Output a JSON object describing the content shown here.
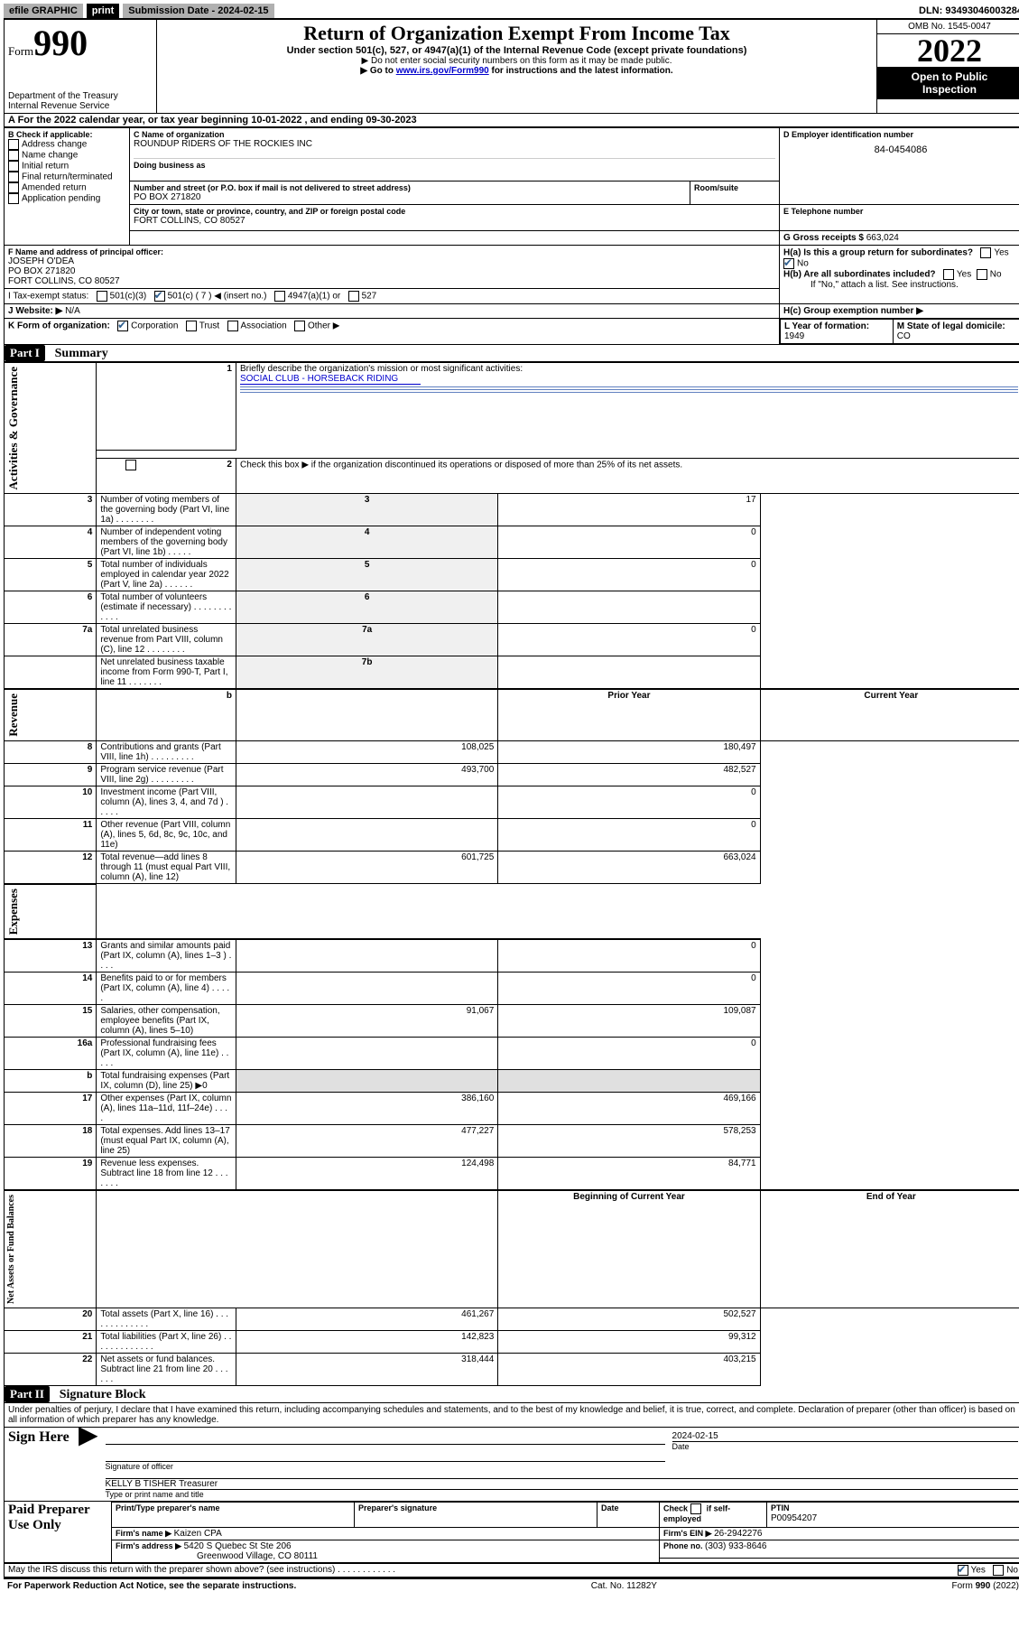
{
  "colors": {
    "link": "#0000cc",
    "check": "#2f5f8f",
    "grey": "#e0e0e0"
  },
  "top": {
    "efile": "efile GRAPHIC",
    "print": "print",
    "sub_label": "Submission Date - ",
    "sub_date": "2024-02-15",
    "dln_label": "DLN: ",
    "dln": "93493046003284"
  },
  "hdr": {
    "form_word": "Form",
    "form_num": "990",
    "dept1": "Department of the Treasury",
    "dept2": "Internal Revenue Service",
    "title": "Return of Organization Exempt From Income Tax",
    "sub1": "Under section 501(c), 527, or 4947(a)(1) of the Internal Revenue Code (except private foundations)",
    "sub2": "▶ Do not enter social security numbers on this form as it may be made public.",
    "sub3a": "▶ Go to ",
    "sub3_link": "www.irs.gov/Form990",
    "sub3b": " for instructions and the latest information.",
    "omb": "OMB No. 1545-0047",
    "year": "2022",
    "open1": "Open to Public",
    "open2": "Inspection"
  },
  "line_a": {
    "prefix": "A For the 2022 calendar year, or tax year beginning ",
    "begin": "10-01-2022",
    "mid": " , and ending ",
    "end": "09-30-2023"
  },
  "box_b": {
    "title": "B Check if applicable:",
    "opts": [
      "Address change",
      "Name change",
      "Initial return",
      "Final return/terminated",
      "Amended return",
      "Application pending"
    ]
  },
  "box_c": {
    "name_lbl": "C Name of organization",
    "name": "ROUNDUP RIDERS OF THE ROCKIES INC",
    "dba_lbl": "Doing business as",
    "addr_lbl": "Number and street (or P.O. box if mail is not delivered to street address)",
    "room_lbl": "Room/suite",
    "addr": "PO BOX 271820",
    "city_lbl": "City or town, state or province, country, and ZIP or foreign postal code",
    "city": "FORT COLLINS, CO  80527"
  },
  "box_d": {
    "lbl": "D Employer identification number",
    "val": "84-0454086"
  },
  "box_e": {
    "lbl": "E Telephone number",
    "val": ""
  },
  "box_g": {
    "lbl": "G Gross receipts $ ",
    "val": "663,024"
  },
  "box_f": {
    "lbl": "F Name and address of principal officer:",
    "name": "JOSEPH O'DEA",
    "addr1": "PO BOX 271820",
    "addr2": "FORT COLLINS, CO  80527"
  },
  "box_h": {
    "a_lbl": "H(a)  Is this a group return for subordinates?",
    "b_lbl": "H(b)  Are all subordinates included?",
    "note": "If \"No,\" attach a list. See instructions.",
    "c_lbl": "H(c)  Group exemption number ▶",
    "yes": "Yes",
    "no": "No"
  },
  "box_i": {
    "lbl": "I   Tax-exempt status:",
    "o1": "501(c)(3)",
    "o2": "501(c) ( 7 ) ◀ (insert no.)",
    "o3": "4947(a)(1) or",
    "o4": "527"
  },
  "box_j": {
    "lbl": "J   Website: ▶ ",
    "val": "N/A"
  },
  "box_k": {
    "lbl": "K Form of organization:",
    "o1": "Corporation",
    "o2": "Trust",
    "o3": "Association",
    "o4": "Other ▶"
  },
  "box_l": {
    "lbl": "L Year of formation: ",
    "val": "1949"
  },
  "box_m": {
    "lbl": "M State of legal domicile: ",
    "val": "CO"
  },
  "part1": {
    "tag": "Part I",
    "title": "Summary"
  },
  "sidebars": {
    "ag": "Activities & Governance",
    "rev": "Revenue",
    "exp": "Expenses",
    "na": "Net Assets or Fund Balances"
  },
  "summary": {
    "l1": "Briefly describe the organization's mission or most significant activities:",
    "l1v": "SOCIAL CLUB - HORSEBACK RIDING",
    "l2": "Check this box ▶         if the organization discontinued its operations or disposed of more than 25% of its net assets.",
    "rows_ag": [
      {
        "n": "3",
        "t": "Number of voting members of the governing body (Part VI, line 1a)   .    .    .    .    .    .    .    .",
        "b": "3",
        "v": "17"
      },
      {
        "n": "4",
        "t": "Number of independent voting members of the governing body (Part VI, line 1b)   .    .    .    .    .",
        "b": "4",
        "v": "0"
      },
      {
        "n": "5",
        "t": "Total number of individuals employed in calendar year 2022 (Part V, line 2a)   .    .    .    .    .    .",
        "b": "5",
        "v": "0"
      },
      {
        "n": "6",
        "t": "Total number of volunteers (estimate if necessary)   .    .    .    .    .    .    .    .    .    .    .    .",
        "b": "6",
        "v": ""
      },
      {
        "n": "7a",
        "t": "Total unrelated business revenue from Part VIII, column (C), line 12   .    .    .    .    .    .    .    .",
        "b": "7a",
        "v": "0"
      },
      {
        "n": "",
        "t": "Net unrelated business taxable income from Form 990-T, Part I, line 11   .    .    .    .    .    .    .",
        "b": "7b",
        "v": ""
      }
    ],
    "hdr_b": "b",
    "hdr_prior": "Prior Year",
    "hdr_curr": "Current Year",
    "rows_rev": [
      {
        "n": "8",
        "t": "Contributions and grants (Part VIII, line 1h)   .    .    .    .    .    .    .    .    .",
        "p": "108,025",
        "c": "180,497"
      },
      {
        "n": "9",
        "t": "Program service revenue (Part VIII, line 2g)   .    .    .    .    .    .    .    .    .",
        "p": "493,700",
        "c": "482,527"
      },
      {
        "n": "10",
        "t": "Investment income (Part VIII, column (A), lines 3, 4, and 7d )   .    .    .    .    .",
        "p": "",
        "c": "0"
      },
      {
        "n": "11",
        "t": "Other revenue (Part VIII, column (A), lines 5, 6d, 8c, 9c, 10c, and 11e)",
        "p": "",
        "c": "0"
      },
      {
        "n": "12",
        "t": "Total revenue—add lines 8 through 11 (must equal Part VIII, column (A), line 12)",
        "p": "601,725",
        "c": "663,024"
      }
    ],
    "rows_exp": [
      {
        "n": "13",
        "t": "Grants and similar amounts paid (Part IX, column (A), lines 1–3 )   .    .    .    .",
        "p": "",
        "c": "0"
      },
      {
        "n": "14",
        "t": "Benefits paid to or for members (Part IX, column (A), line 4)   .    .    .    .    .",
        "p": "",
        "c": "0"
      },
      {
        "n": "15",
        "t": "Salaries, other compensation, employee benefits (Part IX, column (A), lines 5–10)",
        "p": "91,067",
        "c": "109,087"
      },
      {
        "n": "16a",
        "t": "Professional fundraising fees (Part IX, column (A), line 11e)   .    .    .    .    .",
        "p": "",
        "c": "0"
      },
      {
        "n": "b",
        "t": "Total fundraising expenses (Part IX, column (D), line 25) ▶0",
        "p": "GREY",
        "c": "GREY"
      },
      {
        "n": "17",
        "t": "Other expenses (Part IX, column (A), lines 11a–11d, 11f–24e)   .    .    .    .",
        "p": "386,160",
        "c": "469,166"
      },
      {
        "n": "18",
        "t": "Total expenses. Add lines 13–17 (must equal Part IX, column (A), line 25)",
        "p": "477,227",
        "c": "578,253"
      },
      {
        "n": "19",
        "t": "Revenue less expenses. Subtract line 18 from line 12   .    .    .    .    .    .    .",
        "p": "124,498",
        "c": "84,771"
      }
    ],
    "hdr_begin": "Beginning of Current Year",
    "hdr_end": "End of Year",
    "rows_na": [
      {
        "n": "20",
        "t": "Total assets (Part X, line 16)   .    .    .    .    .    .    .    .    .    .    .    .    .",
        "p": "461,267",
        "c": "502,527"
      },
      {
        "n": "21",
        "t": "Total liabilities (Part X, line 26)   .    .    .    .    .    .    .    .    .    .    .    .    .",
        "p": "142,823",
        "c": "99,312"
      },
      {
        "n": "22",
        "t": "Net assets or fund balances. Subtract line 21 from line 20   .    .    .    .    .    .",
        "p": "318,444",
        "c": "403,215"
      }
    ]
  },
  "part2": {
    "tag": "Part II",
    "title": "Signature Block"
  },
  "perjury": "Under penalties of perjury, I declare that I have examined this return, including accompanying schedules and statements, and to the best of my knowledge and belief, it is true, correct, and complete. Declaration of preparer (other than officer) is based on all information of which preparer has any knowledge.",
  "sign": {
    "here": "Sign Here",
    "sig_officer": "Signature of officer",
    "date_lbl": "Date",
    "date": "2024-02-15",
    "officer": "KELLY B TISHER  Treasurer",
    "type_name": "Type or print name and title"
  },
  "paid": {
    "title": "Paid Preparer Use Only",
    "h1": "Print/Type preparer's name",
    "h2": "Preparer's signature",
    "h3": "Date",
    "h4a": "Check",
    "h4b": "if self-employed",
    "h5": "PTIN",
    "ptin": "P00954207",
    "firm_lbl": "Firm's name    ▶ ",
    "firm": "Kaizen CPA",
    "ein_lbl": "Firm's EIN ▶ ",
    "ein": "26-2942276",
    "addr_lbl": "Firm's address ▶ ",
    "addr1": "5420 S Quebec St Ste 206",
    "addr2": "Greenwood Village, CO  80111",
    "phone_lbl": "Phone no. ",
    "phone": "(303) 933-8646"
  },
  "irs_discuss": "May the IRS discuss this return with the preparer shown above? (see instructions)   .    .    .    .    .    .    .    .    .    .    .    .",
  "footer": {
    "l": "For Paperwork Reduction Act Notice, see the separate instructions.",
    "m": "Cat. No. 11282Y",
    "r1": "Form ",
    "r2": "990",
    "r3": " (2022)"
  }
}
